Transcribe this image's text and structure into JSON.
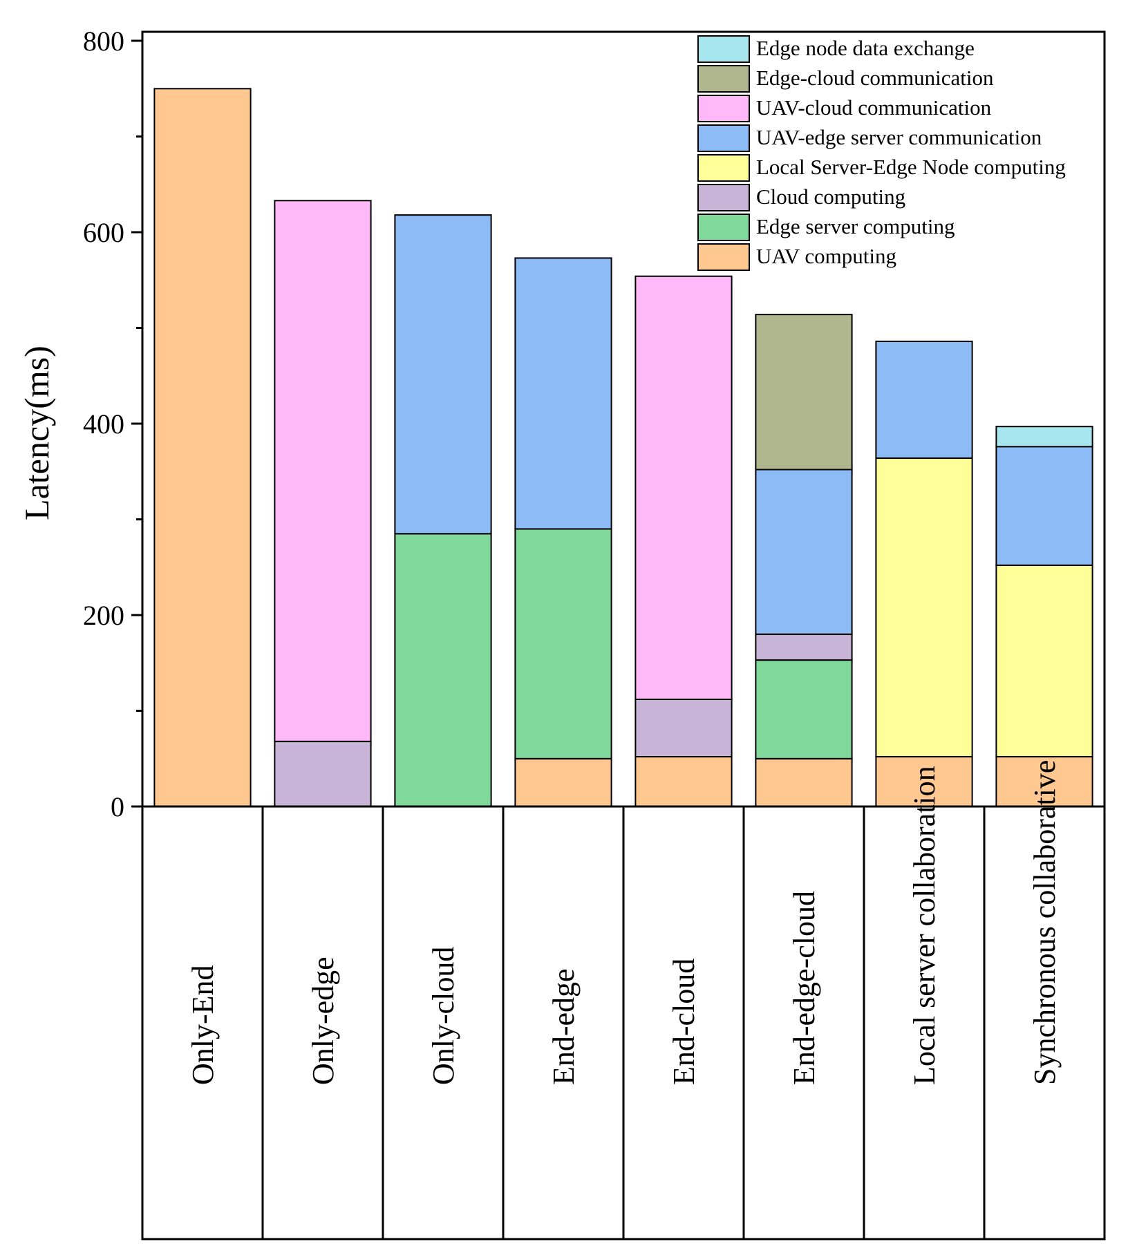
{
  "chart_data": {
    "type": "bar",
    "stacked": true,
    "title": "",
    "xlabel": "",
    "ylabel": "Latency(ms)",
    "ylim": [
      0,
      800
    ],
    "yticks": [
      "0",
      "200",
      "400",
      "600",
      "800"
    ],
    "grid": false,
    "legend_position": "top-right",
    "categories": [
      "Only-End",
      "Only-edge",
      "Only-cloud",
      "End-edge",
      "End-cloud",
      "End-edge-cloud",
      "Local server collaboration",
      "Synchronous collaborative"
    ],
    "series": [
      {
        "name": "UAV computing",
        "color": "#FFC891",
        "values": [
          750,
          0,
          0,
          50,
          52,
          50,
          52,
          52
        ]
      },
      {
        "name": "Edge server computing",
        "color": "#80D99B",
        "values": [
          0,
          0,
          285,
          240,
          0,
          103,
          0,
          0
        ]
      },
      {
        "name": "Cloud computing",
        "color": "#C8B4D6",
        "values": [
          0,
          68,
          0,
          0,
          60,
          27,
          0,
          0
        ]
      },
      {
        "name": "Local Server-Edge Node computing",
        "color": "#FFFF99",
        "values": [
          0,
          0,
          0,
          0,
          0,
          0,
          312,
          200
        ]
      },
      {
        "name": "UAV-edge server communication",
        "color": "#8DBBF5",
        "values": [
          0,
          0,
          333,
          283,
          0,
          172,
          122,
          124
        ]
      },
      {
        "name": "UAV-cloud communication",
        "color": "#FFB9F9",
        "values": [
          0,
          565,
          0,
          0,
          442,
          0,
          0,
          0
        ]
      },
      {
        "name": "Edge-cloud communication",
        "color": "#B0B78F",
        "values": [
          0,
          0,
          0,
          0,
          0,
          162,
          0,
          0
        ]
      },
      {
        "name": "Edge node data exchange",
        "color": "#A8E6EE",
        "values": [
          0,
          0,
          0,
          0,
          0,
          0,
          0,
          21
        ]
      }
    ],
    "legend_order": [
      "Edge node data exchange",
      "Edge-cloud communication",
      "UAV-cloud communication",
      "UAV-edge server communication",
      "Local Server-Edge Node computing",
      "Cloud computing",
      "Edge server computing",
      "UAV computing"
    ]
  }
}
